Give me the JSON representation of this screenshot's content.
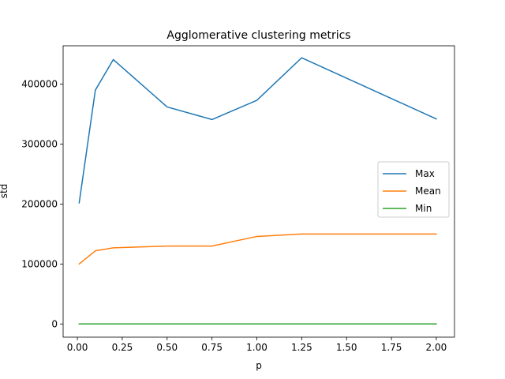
{
  "chart_data": {
    "type": "line",
    "title": "Agglomerative clustering metrics",
    "xlabel": "p",
    "ylabel": "std",
    "xlim": [
      -0.0795,
      2.1015
    ],
    "ylim": [
      -22000,
      464000
    ],
    "xticks": [
      0.0,
      0.25,
      0.5,
      0.75,
      1.0,
      1.25,
      1.5,
      1.75,
      2.0
    ],
    "xtick_labels": [
      "0.00",
      "0.25",
      "0.50",
      "0.75",
      "1.00",
      "1.25",
      "1.50",
      "1.75",
      "2.00"
    ],
    "yticks": [
      0,
      100000,
      200000,
      300000,
      400000
    ],
    "ytick_labels": [
      "0",
      "100000",
      "200000",
      "300000",
      "400000"
    ],
    "grid": false,
    "legend_position": "center-right",
    "series": [
      {
        "name": "Max",
        "color": "#1f77b4",
        "x": [
          0.01,
          0.1,
          0.2,
          0.5,
          0.75,
          1.0,
          1.25,
          2.0
        ],
        "y": [
          202000,
          390000,
          441000,
          362000,
          341000,
          373000,
          444000,
          342000
        ]
      },
      {
        "name": "Mean",
        "color": "#ff7f0e",
        "x": [
          0.01,
          0.1,
          0.2,
          0.5,
          0.75,
          1.0,
          1.25,
          2.0
        ],
        "y": [
          100000,
          122000,
          127000,
          130000,
          130000,
          146000,
          150000,
          150000
        ]
      },
      {
        "name": "Min",
        "color": "#2ca02c",
        "x": [
          0.01,
          0.1,
          0.2,
          0.5,
          0.75,
          1.0,
          1.25,
          2.0
        ],
        "y": [
          0,
          0,
          0,
          0,
          0,
          0,
          0,
          0
        ]
      }
    ]
  }
}
